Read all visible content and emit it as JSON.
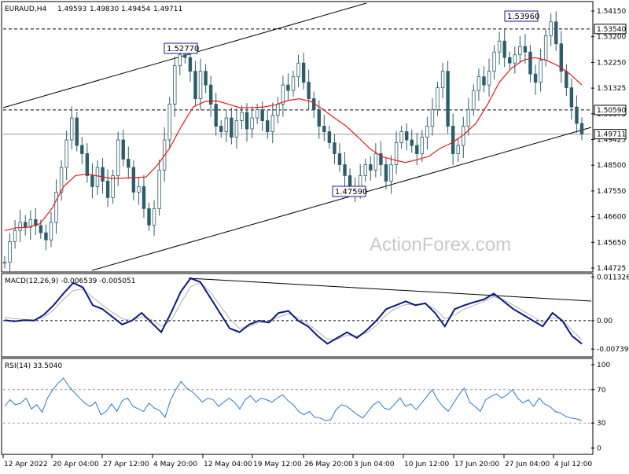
{
  "chart_data": [
    {
      "type": "candlestick",
      "symbol_header": "EURAUD,H4",
      "ohlc_header": [
        "1.49593",
        "1.49830",
        "1.49454",
        "1.49711"
      ],
      "ylim": [
        1.4475,
        1.5448
      ],
      "y_tick_labels": [
        "1.54150",
        "1.53200",
        "1.52250",
        "1.51325",
        "1.50375",
        "1.49425",
        "1.48500",
        "1.47550",
        "1.46600",
        "1.45650",
        "1.44725"
      ],
      "x_tick_labels": [
        "12 Apr 2022",
        "20 Apr 04:00",
        "27 Apr 12:00",
        "4 May 20:00",
        "12 May 04:00",
        "19 May 12:00",
        "26 May 20:00",
        "3 Jun 04:00",
        "10 Jun 12:00",
        "17 Jun 20:00",
        "27 Jun 04:00",
        "4 Jul 12:00"
      ],
      "horizontal_levels": [
        {
          "value": 1.5354,
          "label": "1.53540",
          "style": "dashed"
        },
        {
          "value": 1.5059,
          "label": "1.50590",
          "style": "dashed"
        },
        {
          "value": 1.49711,
          "label": "1.49711",
          "style": "solid-grey"
        }
      ],
      "price_annotations": [
        {
          "label": "1.52770",
          "value": 1.5277
        },
        {
          "label": "1.47590",
          "value": 1.4759
        },
        {
          "label": "1.53960",
          "value": 1.5396
        }
      ],
      "close_series": [
        1.4505,
        1.458,
        1.462,
        1.465,
        1.4632,
        1.466,
        1.4638,
        1.4612,
        1.4586,
        1.465,
        1.476,
        1.485,
        1.495,
        1.503,
        1.493,
        1.49,
        1.482,
        1.478,
        1.485,
        1.48,
        1.474,
        1.482,
        1.495,
        1.488,
        1.485,
        1.476,
        1.478,
        1.47,
        1.464,
        1.47,
        1.484,
        1.495,
        1.508,
        1.522,
        1.526,
        1.525,
        1.52,
        1.51,
        1.52,
        1.515,
        1.508,
        1.5,
        1.498,
        1.503,
        1.496,
        1.502,
        1.505,
        1.499,
        1.503,
        1.506,
        1.502,
        1.498,
        1.504,
        1.508,
        1.515,
        1.513,
        1.518,
        1.523,
        1.516,
        1.51,
        1.506,
        1.5,
        1.498,
        1.494,
        1.49,
        1.486,
        1.482,
        1.478,
        1.477,
        1.482,
        1.486,
        1.484,
        1.49,
        1.486,
        1.48,
        1.486,
        1.494,
        1.498,
        1.495,
        1.493,
        1.49,
        1.496,
        1.5,
        1.506,
        1.514,
        1.52,
        1.5,
        1.49,
        1.493,
        1.5,
        1.506,
        1.513,
        1.518,
        1.515,
        1.52,
        1.527,
        1.531,
        1.525,
        1.523,
        1.526,
        1.529,
        1.527,
        1.519,
        1.516,
        1.524,
        1.533,
        1.538,
        1.53,
        1.52,
        1.514,
        1.507,
        1.501,
        1.4971
      ],
      "moving_average": [
        1.462,
        1.463,
        1.4632,
        1.4645,
        1.47,
        1.478,
        1.482,
        1.4826,
        1.4818,
        1.481,
        1.4811,
        1.4813,
        1.4815,
        1.486,
        1.492,
        1.5,
        1.507,
        1.509,
        1.5092,
        1.508,
        1.5067,
        1.5068,
        1.507,
        1.5078,
        1.5093,
        1.51,
        1.509,
        1.5062,
        1.503,
        1.5,
        1.496,
        1.4918,
        1.489,
        1.4878,
        1.4868,
        1.4878,
        1.489,
        1.492,
        1.494,
        1.497,
        1.501,
        1.508,
        1.516,
        1.521,
        1.524,
        1.525,
        1.524,
        1.522,
        1.519,
        1.515
      ],
      "title": "",
      "xlabel": "",
      "ylabel": ""
    },
    {
      "type": "line",
      "name_header": "MACD(12,26,9) -0.006539 -0.005051",
      "ylim": [
        -0.009,
        0.0118
      ],
      "y_tick_labels": [
        "0.011326",
        "0.00",
        "-0.00739"
      ],
      "macd": [
        0.0001,
        -0.0002,
        0.0001,
        0.0,
        0.0015,
        0.004,
        0.007,
        0.0098,
        0.0086,
        0.004,
        0.003,
        0.001,
        -0.001,
        0.0,
        0.002,
        -0.0005,
        -0.003,
        0.002,
        0.0075,
        0.011,
        0.01,
        0.006,
        0.002,
        -0.002,
        -0.003,
        -0.001,
        0.0,
        -0.0005,
        0.002,
        0.0025,
        0.0,
        -0.0015,
        -0.004,
        -0.006,
        -0.0045,
        -0.003,
        -0.0045,
        -0.0025,
        0.0,
        0.003,
        0.004,
        0.005,
        0.004,
        0.0045,
        0.002,
        -0.0015,
        0.003,
        0.004,
        0.0048,
        0.0055,
        0.007,
        0.005,
        0.003,
        0.0015,
        0.0,
        -0.0015,
        0.002,
        0.0,
        -0.004,
        -0.006
      ],
      "signal": [
        0.0008,
        0.0005,
        0.0003,
        0.0002,
        0.0008,
        0.0028,
        0.0055,
        0.0078,
        0.0082,
        0.006,
        0.004,
        0.0022,
        0.0005,
        0.0,
        0.001,
        0.0003,
        -0.0015,
        0.0,
        0.0045,
        0.0088,
        0.0098,
        0.0075,
        0.004,
        0.0005,
        -0.002,
        -0.0015,
        -0.0005,
        -0.0005,
        0.001,
        0.0018,
        0.0008,
        -0.0008,
        -0.0028,
        -0.0048,
        -0.0048,
        -0.0038,
        -0.004,
        -0.0032,
        -0.0012,
        0.0015,
        0.0032,
        0.0042,
        0.0042,
        0.0043,
        0.003,
        0.0005,
        0.0015,
        0.003,
        0.004,
        0.005,
        0.0062,
        0.0055,
        0.004,
        0.0025,
        0.001,
        -0.0005,
        0.0008,
        0.0002,
        -0.0025,
        -0.005
      ]
    },
    {
      "type": "line",
      "name_header": "RSI(14) 33.5040",
      "ylim": [
        0,
        100
      ],
      "y_tick_labels": [
        "100",
        "70",
        "30",
        "0"
      ],
      "levels": [
        70,
        30
      ],
      "rsi": [
        50,
        58,
        52,
        54,
        60,
        47,
        52,
        43,
        60,
        70,
        78,
        84,
        74,
        67,
        60,
        54,
        50,
        55,
        40,
        44,
        53,
        44,
        57,
        60,
        50,
        47,
        44,
        54,
        48,
        45,
        37,
        57,
        70,
        80,
        72,
        68,
        62,
        55,
        60,
        58,
        50,
        55,
        60,
        55,
        47,
        58,
        63,
        55,
        60,
        58,
        55,
        60,
        64,
        57,
        52,
        44,
        40,
        44,
        37,
        36,
        33,
        34,
        46,
        52,
        50,
        45,
        40,
        36,
        44,
        52,
        56,
        48,
        46,
        53,
        60,
        50,
        53,
        46,
        54,
        62,
        70,
        58,
        50,
        44,
        54,
        64,
        72,
        55,
        50,
        44,
        58,
        62,
        65,
        60,
        64,
        70,
        60,
        54,
        58,
        50,
        60,
        53,
        50,
        44,
        42,
        38,
        36,
        35,
        33
      ]
    }
  ],
  "watermark": "ActionForex.com",
  "colors": {
    "candle": "#2c5d6a",
    "ma": "#e21b1b",
    "macd": "#0b1a7c",
    "signal": "#b0b0b0",
    "rsi": "#2a7ac8",
    "level_line": "#000000",
    "annotation_border": "#1a1a8c"
  }
}
